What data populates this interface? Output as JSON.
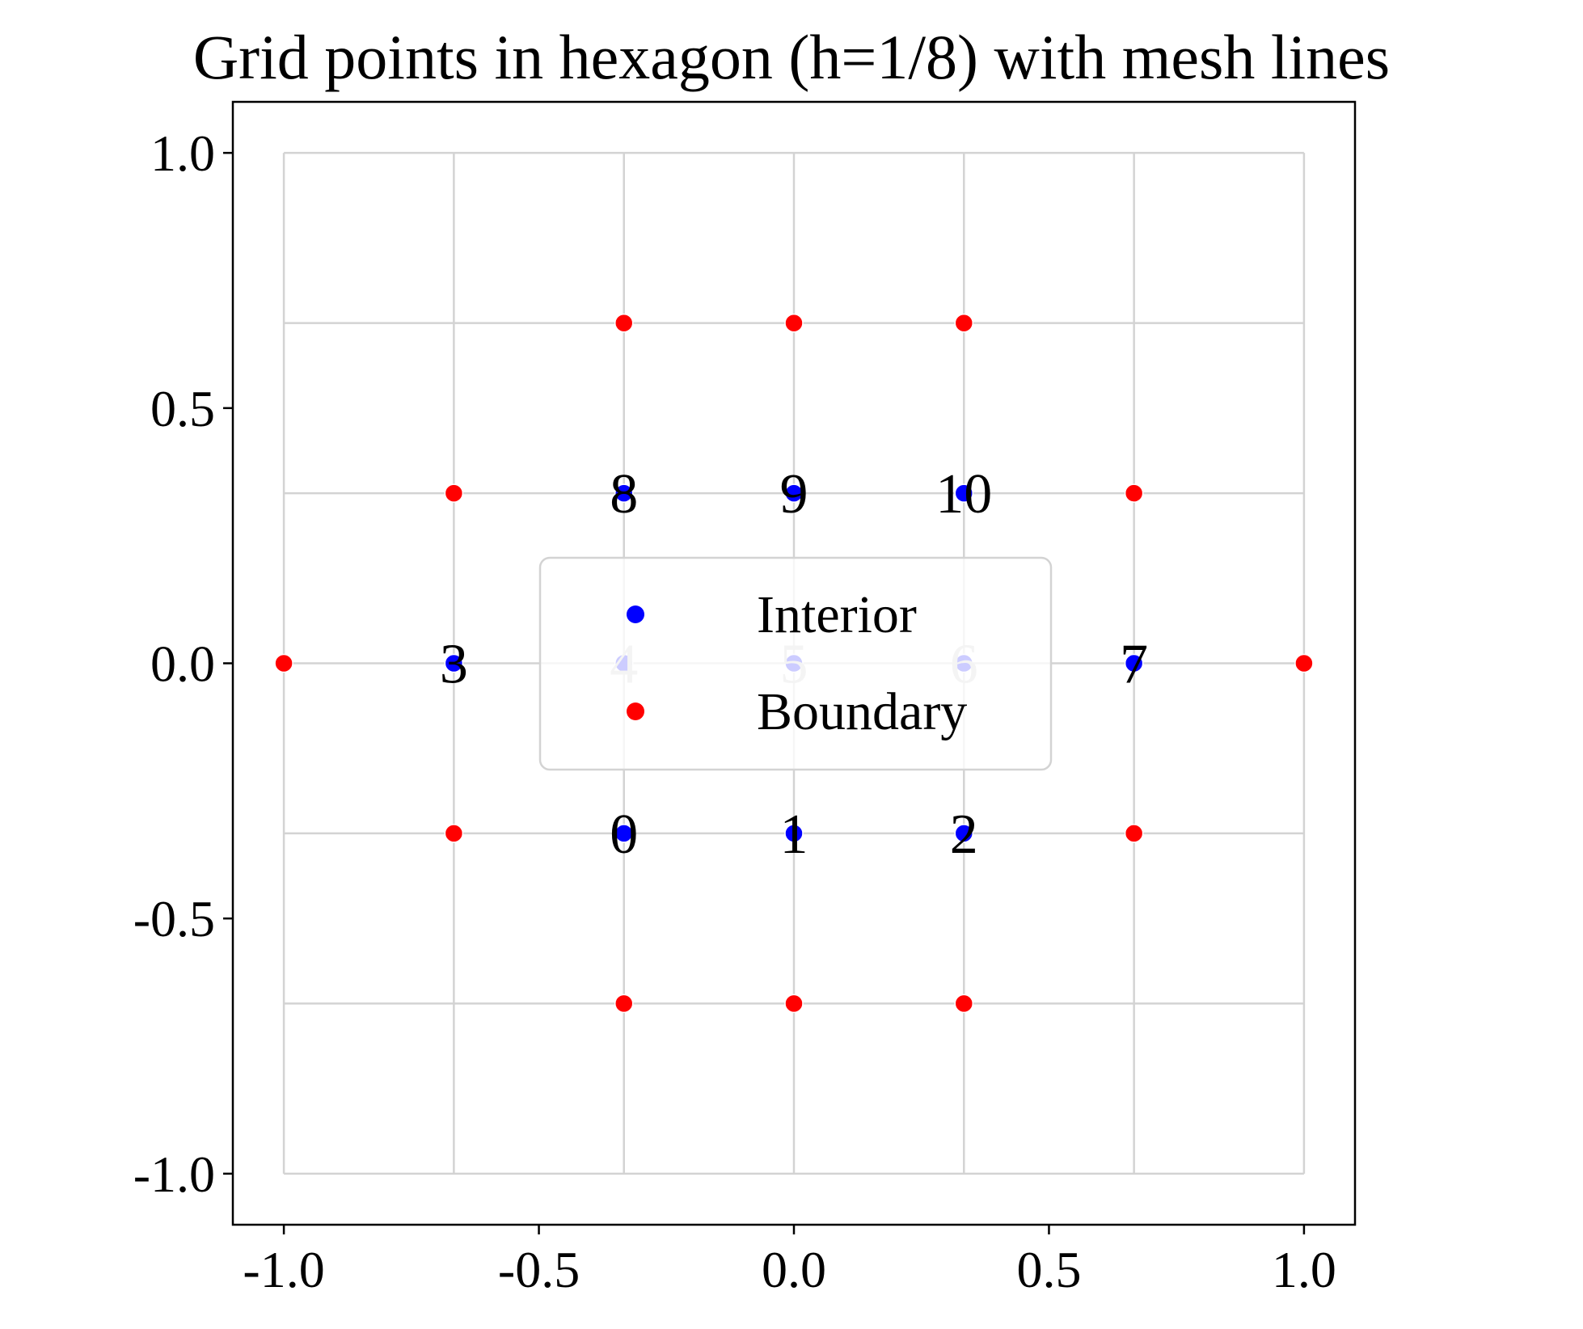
{
  "chart_data": {
    "type": "scatter",
    "title": "Grid points in hexagon (h=1/8) with mesh lines",
    "xlabel": "",
    "ylabel": "",
    "xlim": [
      -1.1,
      1.1
    ],
    "ylim": [
      -1.1,
      1.1
    ],
    "xticks": [
      -1.0,
      -0.5,
      0.0,
      0.5,
      1.0
    ],
    "yticks": [
      -1.0,
      -0.5,
      0.0,
      0.5,
      1.0
    ],
    "xtick_labels": [
      "-1.0",
      "-0.5",
      "0.0",
      "0.5",
      "1.0"
    ],
    "ytick_labels": [
      "-1.0",
      "-0.5",
      "0.0",
      "0.5",
      "1.0"
    ],
    "grid": true,
    "mesh_lines": [
      -1.0,
      -0.6667,
      -0.3333,
      0.0,
      0.3333,
      0.6667,
      1.0
    ],
    "legend": {
      "location": "center",
      "entries": [
        "Interior",
        "Boundary"
      ]
    },
    "series": [
      {
        "name": "Interior",
        "color": "#0000ff",
        "points": [
          {
            "x": -0.3333,
            "y": -0.3333,
            "label": "0"
          },
          {
            "x": 0.0,
            "y": -0.3333,
            "label": "1"
          },
          {
            "x": 0.3333,
            "y": -0.3333,
            "label": "2"
          },
          {
            "x": -0.6667,
            "y": 0.0,
            "label": "3"
          },
          {
            "x": -0.3333,
            "y": 0.0,
            "label": "4"
          },
          {
            "x": 0.0,
            "y": 0.0,
            "label": "5"
          },
          {
            "x": 0.3333,
            "y": 0.0,
            "label": "6"
          },
          {
            "x": 0.6667,
            "y": 0.0,
            "label": "7"
          },
          {
            "x": -0.3333,
            "y": 0.3333,
            "label": "8"
          },
          {
            "x": 0.0,
            "y": 0.3333,
            "label": "9"
          },
          {
            "x": 0.3333,
            "y": 0.3333,
            "label": "10"
          }
        ]
      },
      {
        "name": "Boundary",
        "color": "#ff0000",
        "points": [
          {
            "x": -0.3333,
            "y": 0.6667
          },
          {
            "x": 0.0,
            "y": 0.6667
          },
          {
            "x": 0.3333,
            "y": 0.6667
          },
          {
            "x": -0.6667,
            "y": 0.3333
          },
          {
            "x": 0.6667,
            "y": 0.3333
          },
          {
            "x": -1.0,
            "y": 0.0
          },
          {
            "x": 1.0,
            "y": 0.0
          },
          {
            "x": -0.6667,
            "y": -0.3333
          },
          {
            "x": 0.6667,
            "y": -0.3333
          },
          {
            "x": -0.3333,
            "y": -0.6667
          },
          {
            "x": 0.0,
            "y": -0.6667
          },
          {
            "x": 0.3333,
            "y": -0.6667
          }
        ]
      }
    ],
    "colors": {
      "grid": "#d3d3d3",
      "axes": "#000000",
      "legend_border": "#d3d3d3",
      "label_behind_legend": "#c8c8c8"
    }
  }
}
